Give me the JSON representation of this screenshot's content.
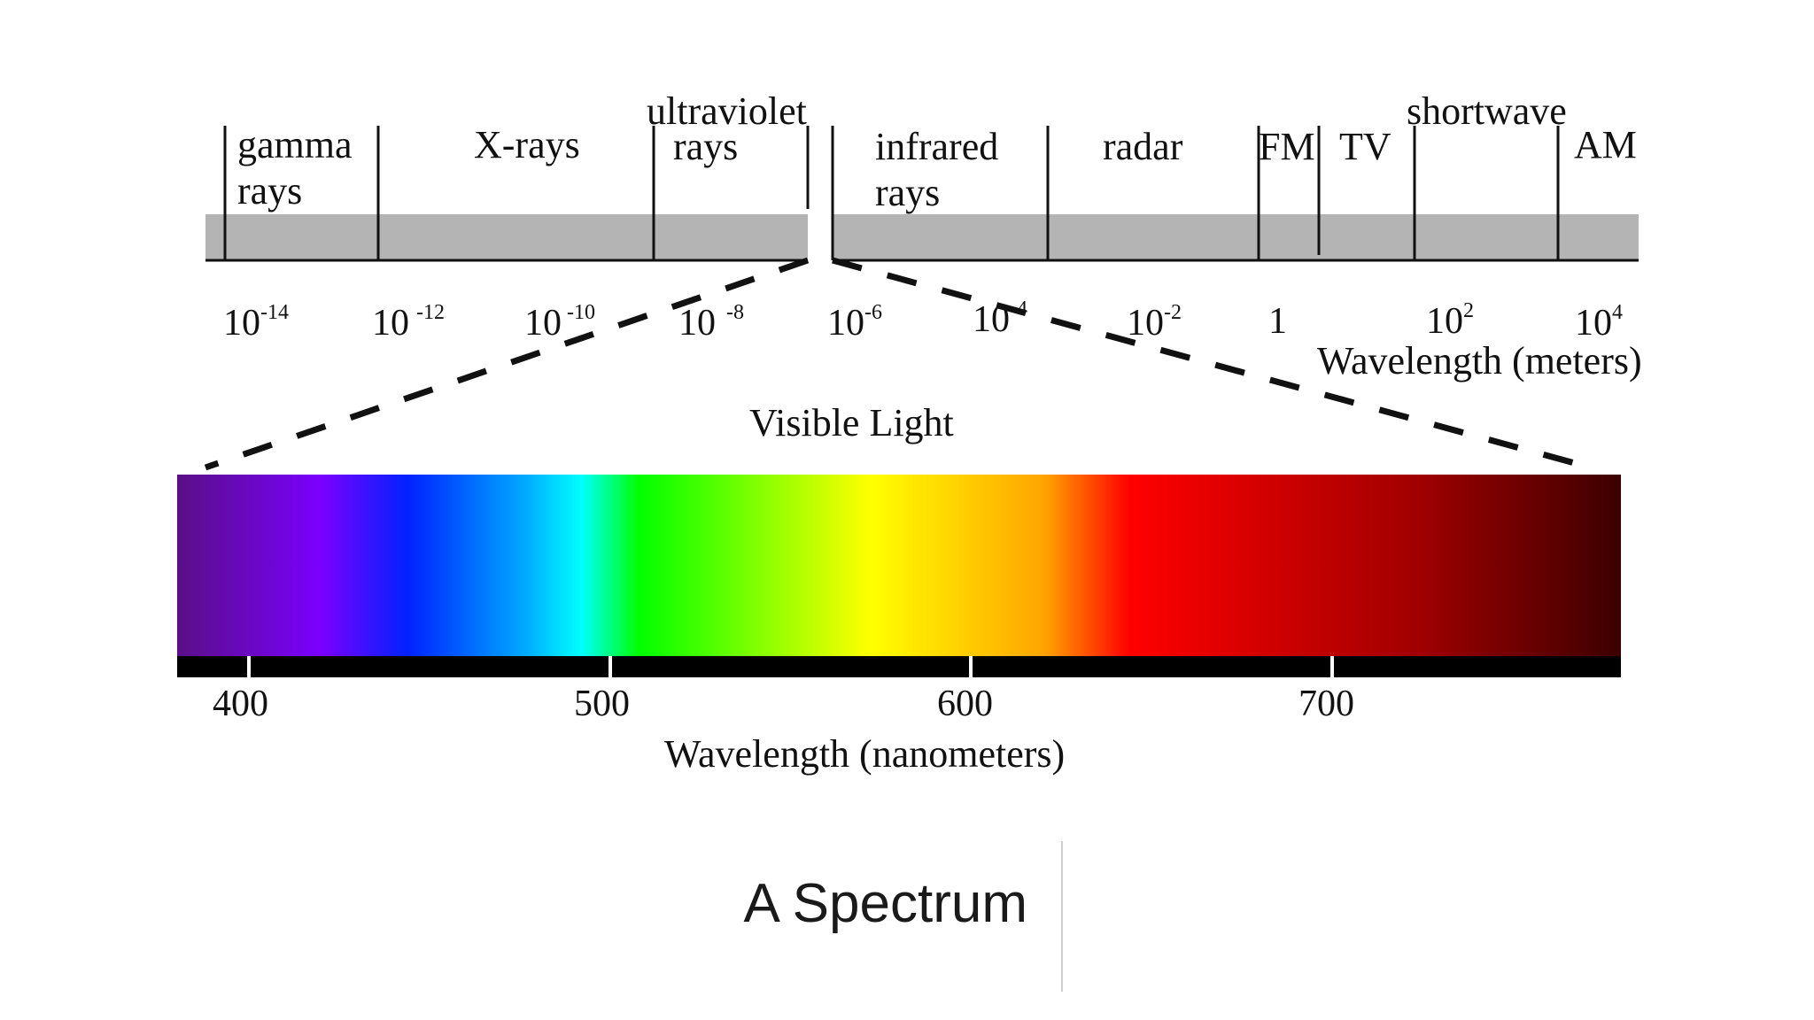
{
  "em_spectrum": {
    "bands": [
      "gamma rays",
      "X-rays",
      "ultraviolet rays",
      "infrared rays",
      "radar",
      "FM",
      "TV",
      "shortwave",
      "AM"
    ],
    "band_lines": {
      "gamma": [
        "gamma",
        "rays"
      ],
      "xray": "X-rays",
      "uv": [
        "ultraviolet",
        "rays"
      ],
      "ir": [
        "infrared",
        "rays"
      ],
      "radar": "radar",
      "fm": "FM",
      "tv": "TV",
      "shortwave": "shortwave",
      "am": "AM"
    },
    "ticks": [
      {
        "base": "10",
        "exp": "-14"
      },
      {
        "base": "10",
        "exp": "-12"
      },
      {
        "base": "10",
        "exp": "-10"
      },
      {
        "base": "10",
        "exp": "-8"
      },
      {
        "base": "10",
        "exp": "-6"
      },
      {
        "base": "10",
        "exp": "-4"
      },
      {
        "base": "10",
        "exp": "-2"
      },
      {
        "base": "1",
        "exp": ""
      },
      {
        "base": "10",
        "exp": "2"
      },
      {
        "base": "10",
        "exp": "4"
      }
    ],
    "axis_title": "Wavelength (meters)",
    "bar_color": "#b4b4b4"
  },
  "visible": {
    "title": "Visible Light",
    "ticks": [
      "400",
      "500",
      "600",
      "700"
    ],
    "axis_title": "Wavelength (nanometers)",
    "gradient": [
      "#5a0f87",
      "#7a00ff",
      "#0022ff",
      "#00a8ff",
      "#00ffff",
      "#00ff00",
      "#ffff00",
      "#ffa500",
      "#ff0000",
      "#a00000",
      "#3c0000"
    ]
  },
  "caption": "A Spectrum"
}
